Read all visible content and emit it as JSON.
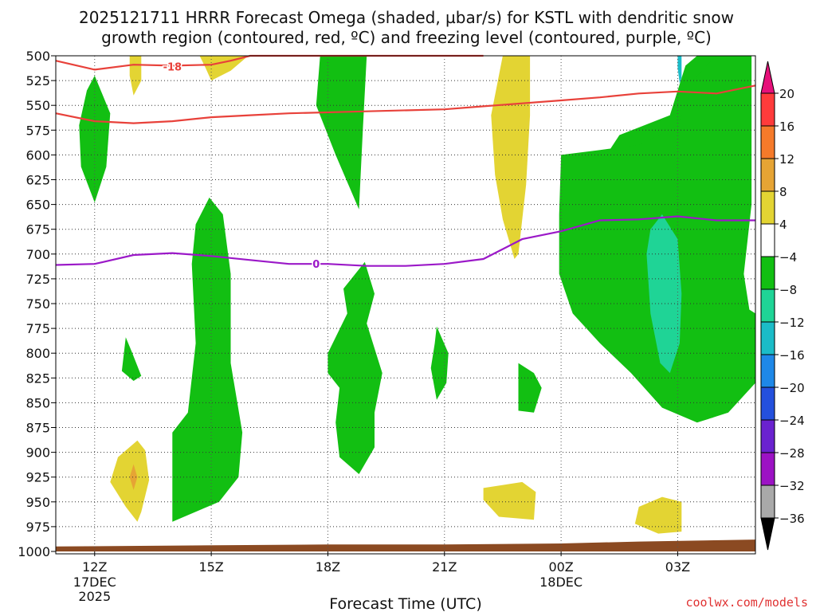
{
  "title_line1": "2025121711 HRRR Forecast Omega (shaded, µbar/s) for KSTL with dendritic snow",
  "title_line2": "growth region (contoured, red, ºC) and freezing level (contoured, purple, ºC)",
  "xlabel": "Forecast Time (UTC)",
  "credit": "coolwx.com/models",
  "chart_data": {
    "type": "time-height contour (omega)",
    "x_unit": "hours after 11Z 17 Dec 2025",
    "xlim": [
      0,
      18
    ],
    "ylim": [
      500,
      1000
    ],
    "y_axis_inverted": true,
    "y_ticks": [
      500,
      525,
      550,
      575,
      600,
      625,
      650,
      675,
      700,
      725,
      750,
      775,
      800,
      825,
      850,
      875,
      900,
      925,
      950,
      975,
      1000
    ],
    "x_ticks": [
      {
        "hour": 1,
        "label": "12Z",
        "sub1": "17DEC",
        "sub2": "2025"
      },
      {
        "hour": 4,
        "label": "15Z",
        "sub1": "",
        "sub2": ""
      },
      {
        "hour": 7,
        "label": "18Z",
        "sub1": "",
        "sub2": ""
      },
      {
        "hour": 10,
        "label": "21Z",
        "sub1": "",
        "sub2": ""
      },
      {
        "hour": 13,
        "label": "00Z",
        "sub1": "18DEC",
        "sub2": ""
      },
      {
        "hour": 16,
        "label": "03Z",
        "sub1": "",
        "sub2": ""
      }
    ],
    "colorbar": {
      "levels": [
        "20",
        "16",
        "12",
        "8",
        "4",
        "−4",
        "−8",
        "−12",
        "−16",
        "−20",
        "−24",
        "−28",
        "−32",
        "−36"
      ],
      "colors": [
        "#ff3b3b",
        "#f57a2a",
        "#e6a434",
        "#e3d433",
        "#ffffff",
        "#12bf12",
        "#1fd496",
        "#1bbcc8",
        "#1e88e8",
        "#2450dd",
        "#6a22cf",
        "#9c12c4",
        "#a9a9a9"
      ],
      "top_arrow_color": "#e6107a",
      "bottom_arrow_color": "#000000"
    },
    "shaded_regions": [
      {
        "bin": "-4 to -8",
        "color": "#12bf12",
        "points": [
          [
            1.0,
            520
          ],
          [
            1.4,
            558
          ],
          [
            1.3,
            612
          ],
          [
            1.0,
            648
          ],
          [
            0.65,
            612
          ],
          [
            0.6,
            570
          ],
          [
            0.8,
            535
          ]
        ]
      },
      {
        "bin": "4 to 8",
        "color": "#e3d433",
        "points": [
          [
            1.9,
            500
          ],
          [
            2.2,
            500
          ],
          [
            2.2,
            525
          ],
          [
            2.0,
            540
          ],
          [
            1.9,
            520
          ]
        ]
      },
      {
        "bin": "4 to 8",
        "color": "#e3d433",
        "points": [
          [
            3.7,
            500
          ],
          [
            4.95,
            500
          ],
          [
            4.5,
            515
          ],
          [
            4.0,
            525
          ],
          [
            3.85,
            512
          ]
        ]
      },
      {
        "bin": "-4 to -8",
        "color": "#12bf12",
        "points": [
          [
            3.95,
            643
          ],
          [
            4.3,
            660
          ],
          [
            4.5,
            720
          ],
          [
            4.5,
            810
          ],
          [
            4.8,
            880
          ],
          [
            4.7,
            925
          ],
          [
            4.2,
            950
          ],
          [
            3.0,
            970
          ],
          [
            3.0,
            880
          ],
          [
            3.4,
            860
          ],
          [
            3.6,
            790
          ],
          [
            3.5,
            710
          ],
          [
            3.6,
            670
          ]
        ]
      },
      {
        "bin": "4 to 8",
        "color": "#e3d433",
        "points": [
          [
            2.1,
            888
          ],
          [
            2.3,
            898
          ],
          [
            2.4,
            928
          ],
          [
            2.2,
            960
          ],
          [
            2.1,
            970
          ],
          [
            1.8,
            955
          ],
          [
            1.4,
            930
          ],
          [
            1.6,
            905
          ]
        ]
      },
      {
        "bin": "8 to 12",
        "color": "#e6a434",
        "points": [
          [
            2.0,
            912
          ],
          [
            2.1,
            925
          ],
          [
            2.0,
            938
          ],
          [
            1.9,
            925
          ]
        ]
      },
      {
        "bin": "-4 to -8",
        "color": "#12bf12",
        "points": [
          [
            1.8,
            784
          ],
          [
            1.95,
            798
          ],
          [
            2.2,
            823
          ],
          [
            2.0,
            828
          ],
          [
            1.7,
            818
          ]
        ]
      },
      {
        "bin": "-4 to -8",
        "color": "#12bf12",
        "points": [
          [
            6.8,
            500
          ],
          [
            8.0,
            500
          ],
          [
            7.9,
            575
          ],
          [
            7.8,
            655
          ],
          [
            7.2,
            600
          ],
          [
            6.7,
            550
          ]
        ]
      },
      {
        "bin": "-4 to -8",
        "color": "#12bf12",
        "points": [
          [
            7.95,
            708
          ],
          [
            8.2,
            740
          ],
          [
            8.0,
            770
          ],
          [
            8.4,
            820
          ],
          [
            8.2,
            860
          ],
          [
            8.2,
            895
          ],
          [
            7.8,
            922
          ],
          [
            7.3,
            905
          ],
          [
            7.2,
            870
          ],
          [
            7.3,
            835
          ],
          [
            7.0,
            820
          ],
          [
            7.0,
            800
          ],
          [
            7.5,
            760
          ],
          [
            7.4,
            735
          ]
        ]
      },
      {
        "bin": "-4 to -8",
        "color": "#12bf12",
        "points": [
          [
            9.8,
            773
          ],
          [
            10.1,
            800
          ],
          [
            10.05,
            830
          ],
          [
            9.8,
            847
          ],
          [
            9.65,
            815
          ],
          [
            9.75,
            790
          ]
        ]
      },
      {
        "bin": "4 to 8",
        "color": "#e3d433",
        "points": [
          [
            11.5,
            500
          ],
          [
            12.2,
            500
          ],
          [
            12.2,
            560
          ],
          [
            12.1,
            630
          ],
          [
            11.9,
            700
          ],
          [
            11.8,
            705
          ],
          [
            11.5,
            665
          ],
          [
            11.3,
            620
          ],
          [
            11.2,
            560
          ]
        ]
      },
      {
        "bin": "-4 to -8",
        "color": "#12bf12",
        "points": [
          [
            11.9,
            810
          ],
          [
            12.3,
            820
          ],
          [
            12.5,
            835
          ],
          [
            12.3,
            860
          ],
          [
            11.9,
            858
          ]
        ]
      },
      {
        "bin": "4 to 8",
        "color": "#e3d433",
        "points": [
          [
            11.0,
            936
          ],
          [
            12.0,
            930
          ],
          [
            12.35,
            940
          ],
          [
            12.3,
            968
          ],
          [
            11.4,
            965
          ],
          [
            11.0,
            948
          ]
        ]
      },
      {
        "bin": "-4 to -8",
        "color": "#12bf12",
        "points": [
          [
            16.5,
            500
          ],
          [
            17.5,
            500
          ],
          [
            17.6,
            560
          ],
          [
            17.5,
            650
          ],
          [
            17.5,
            700
          ],
          [
            17.6,
            750
          ],
          [
            18.0,
            760
          ],
          [
            18.0,
            820
          ],
          [
            17.4,
            850
          ],
          [
            16.9,
            865
          ],
          [
            16.5,
            868
          ],
          [
            16.0,
            860
          ],
          [
            15.5,
            830
          ],
          [
            15.0,
            790
          ],
          [
            14.7,
            745
          ],
          [
            14.0,
            690
          ],
          [
            13.5,
            640
          ],
          [
            14.0,
            610
          ],
          [
            14.5,
            580
          ],
          [
            15.8,
            560
          ],
          [
            16.2,
            510
          ]
        ]
      },
      {
        "bin": "-4 to -8",
        "color": "#12bf12",
        "points": [
          [
            13.0,
            600
          ],
          [
            14.0,
            595
          ],
          [
            15.0,
            590
          ],
          [
            16.0,
            570
          ],
          [
            16.5,
            520
          ],
          [
            17.0,
            500
          ],
          [
            17.9,
            500
          ],
          [
            17.9,
            650
          ],
          [
            17.7,
            720
          ],
          [
            17.9,
            770
          ],
          [
            18.0,
            780
          ],
          [
            18.0,
            830
          ],
          [
            17.3,
            860
          ],
          [
            16.5,
            870
          ],
          [
            15.6,
            855
          ],
          [
            14.8,
            820
          ],
          [
            14.0,
            790
          ],
          [
            13.3,
            760
          ],
          [
            12.95,
            720
          ],
          [
            12.95,
            660
          ]
        ]
      },
      {
        "bin": "-8 to -12",
        "color": "#1fd496",
        "points": [
          [
            15.6,
            660
          ],
          [
            16.0,
            685
          ],
          [
            16.1,
            740
          ],
          [
            16.05,
            790
          ],
          [
            15.8,
            820
          ],
          [
            15.55,
            810
          ],
          [
            15.3,
            760
          ],
          [
            15.2,
            700
          ],
          [
            15.3,
            675
          ]
        ]
      },
      {
        "bin": "-12 to -16",
        "color": "#1bbcc8",
        "points": [
          [
            16.0,
            500
          ],
          [
            16.1,
            500
          ],
          [
            16.1,
            522
          ],
          [
            16.05,
            528
          ],
          [
            16.0,
            512
          ]
        ]
      },
      {
        "bin": "4 to 8",
        "color": "#e3d433",
        "points": [
          [
            15.6,
            945
          ],
          [
            16.1,
            950
          ],
          [
            16.1,
            980
          ],
          [
            15.5,
            982
          ],
          [
            14.9,
            972
          ],
          [
            15.0,
            955
          ]
        ]
      }
    ],
    "red_contour_upper": {
      "label": "-18",
      "points": [
        [
          0,
          505
        ],
        [
          1.0,
          514
        ],
        [
          2.0,
          509
        ],
        [
          3.0,
          510
        ],
        [
          4.0,
          509
        ],
        [
          4.5,
          505
        ],
        [
          5.0,
          500
        ],
        [
          11.0,
          500
        ]
      ]
    },
    "red_contour_lower": {
      "points": [
        [
          0,
          558
        ],
        [
          1.0,
          566
        ],
        [
          2.0,
          568
        ],
        [
          3.0,
          566
        ],
        [
          4.0,
          562
        ],
        [
          5.0,
          560
        ],
        [
          6.0,
          558
        ],
        [
          8.0,
          556
        ],
        [
          10.0,
          554
        ],
        [
          11.0,
          551
        ],
        [
          12.0,
          548
        ],
        [
          13.0,
          545
        ],
        [
          14.0,
          542
        ],
        [
          15.0,
          538
        ],
        [
          16.0,
          536
        ],
        [
          17.0,
          538
        ],
        [
          18.0,
          530
        ]
      ]
    },
    "purple_contour": {
      "label": "0",
      "points": [
        [
          0,
          711
        ],
        [
          1.0,
          710
        ],
        [
          2.0,
          701
        ],
        [
          3.0,
          699
        ],
        [
          4.0,
          702
        ],
        [
          5.0,
          706
        ],
        [
          6.0,
          710
        ],
        [
          7.0,
          710
        ],
        [
          8.0,
          712
        ],
        [
          9.0,
          712
        ],
        [
          10.0,
          710
        ],
        [
          11.0,
          705
        ],
        [
          12.0,
          685
        ],
        [
          13.0,
          677
        ],
        [
          14.0,
          666
        ],
        [
          15.0,
          665
        ],
        [
          16.0,
          662
        ],
        [
          17.0,
          666
        ],
        [
          18.0,
          666
        ]
      ]
    },
    "ground": {
      "color": "#8b4a22",
      "points": [
        [
          0,
          995
        ],
        [
          3.5,
          994
        ],
        [
          7.0,
          993
        ],
        [
          10.0,
          993
        ],
        [
          13.0,
          992
        ],
        [
          15.0,
          990
        ],
        [
          18.0,
          988
        ]
      ]
    }
  }
}
